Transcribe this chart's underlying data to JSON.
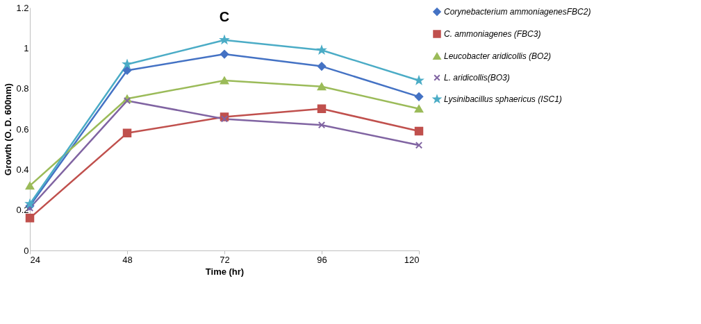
{
  "chart_data": {
    "type": "line",
    "title": "C",
    "xlabel": "Time (hr)",
    "ylabel": "Growth (O. D. 600nm)",
    "x": [
      24,
      48,
      72,
      96,
      120
    ],
    "series": [
      {
        "name": "Corynebacterium ammoniagenesFBC2)",
        "color": "#4472c4",
        "marker": "diamond",
        "values": [
          0.22,
          0.89,
          0.97,
          0.91,
          0.76
        ]
      },
      {
        "name": "C. ammoniagenes (FBC3)",
        "color": "#c0504d",
        "marker": "square",
        "values": [
          0.16,
          0.58,
          0.66,
          0.7,
          0.59
        ]
      },
      {
        "name": "Leucobacter aridicollis (BO2)",
        "color": "#9bbb59",
        "marker": "triangle",
        "values": [
          0.32,
          0.75,
          0.84,
          0.81,
          0.7
        ]
      },
      {
        "name": "L. aridicollis(BO3)",
        "color": "#8064a2",
        "marker": "cross",
        "values": [
          0.21,
          0.74,
          0.65,
          0.62,
          0.52
        ]
      },
      {
        "name": "Lysinibacillus sphaericus (ISC1)",
        "color": "#4bacc6",
        "marker": "star",
        "values": [
          0.23,
          0.92,
          1.04,
          0.99,
          0.84
        ]
      }
    ],
    "xlim": [
      24,
      120
    ],
    "xticks": [
      24,
      48,
      72,
      96,
      120
    ],
    "ylim": [
      0,
      1.2
    ],
    "yticks": [
      0,
      0.2,
      0.4,
      0.6,
      0.8,
      1,
      1.2
    ],
    "grid": false,
    "legend": "right",
    "line_style": "solid"
  }
}
